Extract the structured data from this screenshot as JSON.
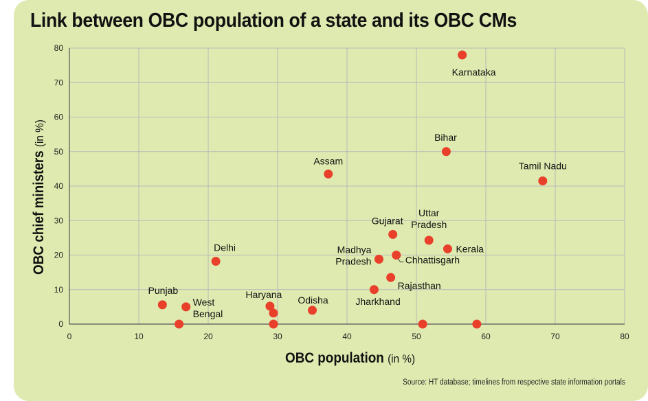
{
  "colors": {
    "background": "#dfeab0",
    "point": "#e8402a",
    "grid": "#b8b8b8"
  },
  "title": "Link between OBC population of a state and its OBC CMs",
  "axes": {
    "xlabel_main": "OBC population",
    "xlabel_unit": "(in %)",
    "ylabel_main": "OBC chief ministers",
    "ylabel_unit": "(in %)"
  },
  "source": "Source: HT database; timelines from respective state information portals",
  "chart_data": {
    "type": "scatter",
    "xlim": [
      0,
      80
    ],
    "ylim": [
      0,
      80
    ],
    "xticks": [
      0,
      10,
      20,
      30,
      40,
      50,
      60,
      70,
      80
    ],
    "yticks": [
      0,
      10,
      20,
      30,
      40,
      50,
      60,
      70,
      80
    ],
    "grid": true,
    "points": [
      {
        "label": "Karnataka",
        "x": 56.6,
        "y": 78
      },
      {
        "label": "Bihar",
        "x": 54.3,
        "y": 50
      },
      {
        "label": "Tamil Nadu",
        "x": 68.2,
        "y": 41.5
      },
      {
        "label": "Assam",
        "x": 37.3,
        "y": 43.5
      },
      {
        "label": "Gujarat",
        "x": 46.6,
        "y": 26
      },
      {
        "label": "Uttar Pradesh",
        "x": 51.8,
        "y": 24.3
      },
      {
        "label": "Kerala",
        "x": 54.5,
        "y": 21.8
      },
      {
        "label": "Delhi",
        "x": 21.1,
        "y": 18.2
      },
      {
        "label": "Madhya Pradesh",
        "x": 44.6,
        "y": 18.8
      },
      {
        "label": "Chhattisgarh",
        "x": 47.1,
        "y": 20
      },
      {
        "label": "Rajasthan",
        "x": 46.3,
        "y": 13.5
      },
      {
        "label": "Jharkhand",
        "x": 43.9,
        "y": 10
      },
      {
        "label": "Punjab",
        "x": 13.4,
        "y": 5.6
      },
      {
        "label": "West Bengal",
        "x": 16.8,
        "y": 5
      },
      {
        "label": "Haryana",
        "x": 28.9,
        "y": 5.2
      },
      {
        "label": "Odisha",
        "x": 35,
        "y": 4
      },
      {
        "label": "",
        "x": 29.4,
        "y": 3.2
      },
      {
        "label": "",
        "x": 15.8,
        "y": 0
      },
      {
        "label": "",
        "x": 29.4,
        "y": 0
      },
      {
        "label": "",
        "x": 50.9,
        "y": 0
      },
      {
        "label": "",
        "x": 58.7,
        "y": 0
      }
    ]
  }
}
